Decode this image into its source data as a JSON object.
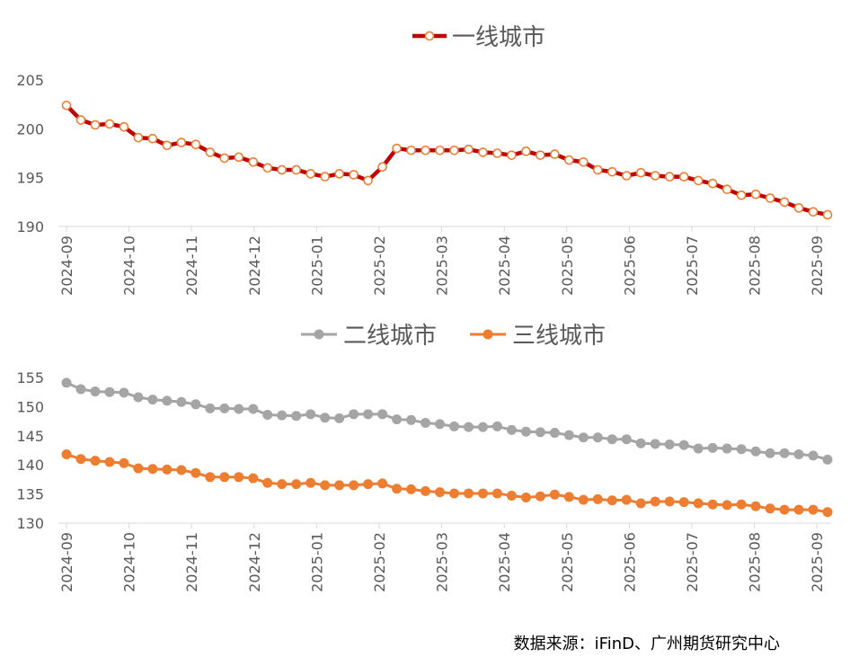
{
  "chart_data": [
    {
      "type": "line",
      "x_ticks": [
        "2024-09",
        "2024-10",
        "2024-11",
        "2024-12",
        "2025-01",
        "2025-02",
        "2025-03",
        "2025-04",
        "2025-05",
        "2025-06",
        "2025-07",
        "2025-08",
        "2025-09"
      ],
      "ylim": [
        190,
        205
      ],
      "y_ticks": [
        190,
        195,
        200,
        205
      ],
      "grid": false,
      "legend_position": "top-center",
      "series": [
        {
          "name": "一线城市",
          "color": "#C00000",
          "marker": "hollow-circle",
          "values": [
            202.4,
            200.9,
            200.4,
            200.5,
            200.2,
            199.1,
            199.0,
            198.3,
            198.6,
            198.4,
            197.6,
            197.0,
            197.1,
            196.6,
            196.0,
            195.8,
            195.8,
            195.4,
            195.1,
            195.4,
            195.3,
            194.7,
            196.1,
            198.0,
            197.8,
            197.8,
            197.8,
            197.8,
            197.9,
            197.6,
            197.5,
            197.3,
            197.7,
            197.3,
            197.4,
            196.8,
            196.6,
            195.8,
            195.6,
            195.2,
            195.5,
            195.2,
            195.1,
            195.1,
            194.7,
            194.4,
            193.8,
            193.2,
            193.3,
            192.9,
            192.5,
            191.9,
            191.5,
            191.2
          ]
        }
      ]
    },
    {
      "type": "line",
      "x_ticks": [
        "2024-09",
        "2024-10",
        "2024-11",
        "2024-12",
        "2025-01",
        "2025-02",
        "2025-03",
        "2025-04",
        "2025-05",
        "2025-06",
        "2025-07",
        "2025-08",
        "2025-09"
      ],
      "ylim": [
        130,
        155
      ],
      "y_ticks": [
        130,
        135,
        140,
        145,
        150,
        155
      ],
      "grid": false,
      "legend_position": "top-center",
      "series": [
        {
          "name": "二线城市",
          "color": "#A5A5A5",
          "marker": "filled-circle",
          "values": [
            154.1,
            153.0,
            152.6,
            152.5,
            152.4,
            151.6,
            151.2,
            151.0,
            150.8,
            150.4,
            149.7,
            149.7,
            149.6,
            149.6,
            148.6,
            148.5,
            148.4,
            148.7,
            148.1,
            148.0,
            148.7,
            148.7,
            148.7,
            147.8,
            147.7,
            147.2,
            147.0,
            146.6,
            146.5,
            146.5,
            146.6,
            146.0,
            145.7,
            145.6,
            145.5,
            145.1,
            144.7,
            144.7,
            144.4,
            144.4,
            143.7,
            143.6,
            143.5,
            143.4,
            142.8,
            142.9,
            142.8,
            142.7,
            142.3,
            142.0,
            142.0,
            141.8,
            141.6,
            140.9
          ]
        },
        {
          "name": "三线城市",
          "color": "#ED7D31",
          "marker": "filled-circle",
          "values": [
            141.8,
            141.0,
            140.7,
            140.5,
            140.3,
            139.4,
            139.3,
            139.2,
            139.1,
            138.6,
            137.9,
            137.9,
            137.9,
            137.7,
            136.9,
            136.7,
            136.7,
            136.9,
            136.5,
            136.5,
            136.5,
            136.7,
            136.8,
            135.9,
            135.8,
            135.5,
            135.3,
            135.1,
            135.1,
            135.1,
            135.1,
            134.7,
            134.4,
            134.6,
            134.9,
            134.5,
            134.0,
            134.1,
            133.9,
            134.0,
            133.4,
            133.7,
            133.7,
            133.6,
            133.4,
            133.2,
            133.1,
            133.2,
            132.9,
            132.5,
            132.3,
            132.3,
            132.3,
            131.9
          ]
        }
      ]
    }
  ],
  "source": "数据来源：iFinD、广州期货研究中心"
}
